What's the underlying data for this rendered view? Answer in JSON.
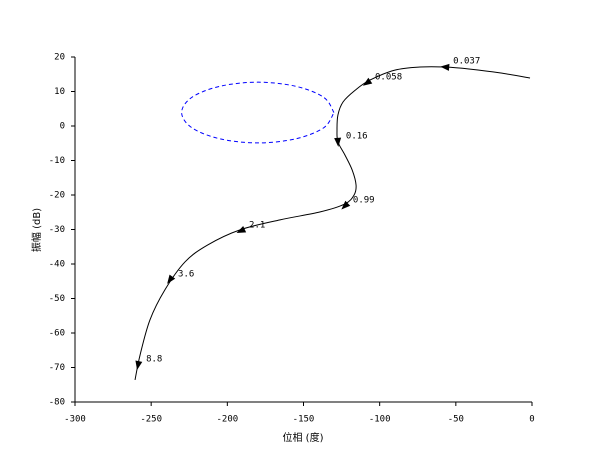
{
  "chart_data": {
    "type": "nichols",
    "x_label": "位相 (度)",
    "y_label": "振幅 (dB)",
    "xlim": [
      -300,
      0
    ],
    "ylim": [
      -80,
      20
    ],
    "xticks": [
      -300,
      -250,
      -200,
      -150,
      -100,
      -50,
      0
    ],
    "yticks": [
      -80,
      -70,
      -60,
      -50,
      -40,
      -30,
      -20,
      -10,
      0,
      10,
      20
    ],
    "series": [
      {
        "color": "#000000",
        "dash": false,
        "x": [
          -1.3,
          -21,
          -40.7,
          -57,
          -73.5,
          -90,
          -106.4,
          -116,
          -124,
          -127.4,
          -128,
          -127.4,
          -122.8,
          -118,
          -115.5,
          -116.8,
          -122.8,
          -139,
          -165.4,
          -191.7,
          -213,
          -227.8,
          -241,
          -250.8,
          -257.3,
          -260.6
        ],
        "values": [
          13.9,
          15.4,
          16.5,
          17.1,
          17.1,
          16.2,
          13.3,
          10.4,
          7,
          3.2,
          -1.2,
          -4.6,
          -8.4,
          -12.8,
          -17.1,
          -20,
          -22.6,
          -24.9,
          -27.2,
          -30.1,
          -34.5,
          -39.4,
          -47.5,
          -56.2,
          -66.4,
          -73.6
        ]
      },
      {
        "color": "#0000ff",
        "dash": true,
        "x": [
          -130,
          -136.7,
          -155,
          -180,
          -205,
          -223.3,
          -230,
          -223.3,
          -205,
          -180,
          -155,
          -136.7,
          -130
        ],
        "values": [
          3.9,
          8.3,
          11.5,
          12.7,
          11.5,
          8.3,
          3.9,
          -0.5,
          -3.7,
          -4.9,
          -3.7,
          -0.5,
          3.9
        ]
      }
    ],
    "arrows": [
      {
        "x": -57,
        "y": 17.1,
        "label": "0.037"
      },
      {
        "x": -108.3,
        "y": 12.5,
        "label": "0.058"
      },
      {
        "x": -127.4,
        "y": -4.6,
        "label": "0.16"
      },
      {
        "x": -122.8,
        "y": -23.2,
        "label": "0.99"
      },
      {
        "x": -191,
        "y": -30.4,
        "label": "2.1"
      },
      {
        "x": -237.6,
        "y": -44.6,
        "label": "3.6"
      },
      {
        "x": -258.6,
        "y": -69.3,
        "label": "8.8"
      }
    ]
  }
}
